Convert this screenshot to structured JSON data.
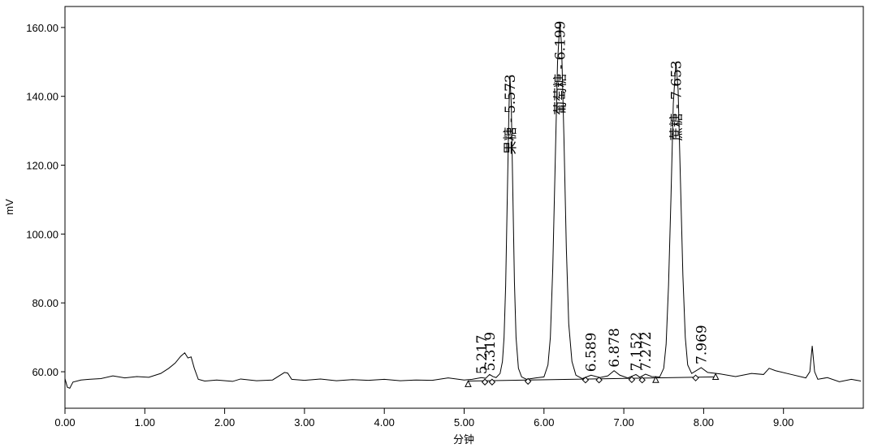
{
  "chart_data": {
    "type": "line",
    "x_label": "分钟",
    "y_label": "mV",
    "color": "#000000",
    "xlim": [
      0,
      10
    ],
    "ylim": [
      49.4,
      166.1
    ],
    "xticks": [
      {
        "value": 0,
        "label": "0.00"
      },
      {
        "value": 1,
        "label": "1.00"
      },
      {
        "value": 2,
        "label": "2.00"
      },
      {
        "value": 3,
        "label": "3.00"
      },
      {
        "value": 4,
        "label": "4.00"
      },
      {
        "value": 5,
        "label": "5.00"
      },
      {
        "value": 6,
        "label": "6.00"
      },
      {
        "value": 7,
        "label": "7.00"
      },
      {
        "value": 8,
        "label": "8.00"
      },
      {
        "value": 9,
        "label": "9.00"
      }
    ],
    "yticks": [
      {
        "value": 60,
        "label": "60.00"
      },
      {
        "value": 80,
        "label": "80.00"
      },
      {
        "value": 100,
        "label": "100.00"
      },
      {
        "value": 120,
        "label": "120.00"
      },
      {
        "value": 140,
        "label": "140.00"
      },
      {
        "value": 160,
        "label": "160.00"
      }
    ],
    "x": [
      0,
      0.03,
      0.06,
      0.1,
      0.2,
      0.3,
      0.45,
      0.6,
      0.75,
      0.9,
      1.05,
      1.2,
      1.3,
      1.38,
      1.45,
      1.5,
      1.54,
      1.58,
      1.62,
      1.67,
      1.75,
      1.9,
      2.1,
      2.2,
      2.4,
      2.6,
      2.75,
      2.79,
      2.84,
      3.0,
      3.2,
      3.4,
      3.6,
      3.8,
      4.0,
      4.2,
      4.4,
      4.6,
      4.8,
      5.0,
      5.1,
      5.217,
      5.27,
      5.319,
      5.36,
      5.4,
      5.45,
      5.48,
      5.5,
      5.52,
      5.54,
      5.56,
      5.573,
      5.59,
      5.61,
      5.63,
      5.65,
      5.68,
      5.72,
      5.78,
      5.9,
      6.0,
      6.05,
      6.08,
      6.11,
      6.14,
      6.17,
      6.199,
      6.22,
      6.25,
      6.28,
      6.31,
      6.35,
      6.4,
      6.48,
      6.589,
      6.7,
      6.8,
      6.878,
      6.95,
      7.05,
      7.152,
      7.2,
      7.272,
      7.35,
      7.45,
      7.5,
      7.53,
      7.56,
      7.59,
      7.62,
      7.653,
      7.68,
      7.71,
      7.74,
      7.77,
      7.8,
      7.85,
      7.969,
      8.05,
      8.2,
      8.4,
      8.6,
      8.75,
      8.82,
      8.9,
      9.1,
      9.28,
      9.33,
      9.36,
      9.39,
      9.43,
      9.55,
      9.7,
      9.85,
      9.97
    ],
    "values": [
      58,
      55.5,
      55.2,
      57,
      57.6,
      57.8,
      58,
      58.8,
      58.2,
      58.6,
      58.4,
      59.5,
      61,
      62.5,
      64.5,
      65.5,
      64,
      64.3,
      61,
      57.8,
      57.3,
      57.6,
      57.2,
      57.9,
      57.4,
      57.6,
      59.8,
      59.6,
      57.8,
      57.5,
      57.9,
      57.4,
      57.7,
      57.5,
      57.8,
      57.4,
      57.6,
      57.5,
      58.2,
      57.6,
      57.8,
      58.3,
      58.1,
      59.2,
      58.6,
      58.3,
      59.5,
      63,
      70,
      85,
      110,
      135,
      146,
      138,
      112,
      86,
      70,
      61,
      58.5,
      57.8,
      58.2,
      58.5,
      62,
      70,
      90,
      120,
      150,
      161.5,
      155,
      128,
      96,
      74,
      63,
      59,
      58,
      59,
      58.3,
      58.8,
      60.3,
      59,
      58.2,
      59.2,
      58.4,
      59.3,
      58.6,
      58.5,
      61,
      68,
      85,
      110,
      138,
      150,
      142,
      115,
      88,
      70,
      62,
      59.5,
      61.2,
      59.8,
      59.4,
      58.6,
      59.5,
      59.2,
      61,
      60.3,
      59.2,
      58.2,
      60,
      67.5,
      60,
      57.8,
      58.3,
      57.1,
      57.8,
      57.3
    ],
    "baseline": {
      "x": [
        5.05,
        8.15
      ],
      "y": [
        57.3,
        58.5
      ]
    },
    "markers": {
      "x": [
        5.05,
        5.26,
        5.35,
        5.8,
        6.52,
        6.69,
        7.1,
        7.23,
        7.4,
        7.9,
        8.15
      ],
      "y": [
        56.5,
        57,
        57,
        57.2,
        57.6,
        57.6,
        57.7,
        57.6,
        57.7,
        58.2,
        58.6
      ],
      "shape": [
        "triangle",
        "diamond",
        "diamond",
        "diamond",
        "diamond",
        "diamond",
        "diamond",
        "diamond",
        "triangle",
        "diamond",
        "triangle"
      ]
    },
    "annotations": [
      {
        "x": 5.217,
        "y": 58.3,
        "label": "5.217"
      },
      {
        "x": 5.319,
        "y": 59.2,
        "label": "5.319"
      },
      {
        "x": 5.573,
        "y": 146,
        "label": "果糖 - 5.573"
      },
      {
        "x": 6.199,
        "y": 161.5,
        "label": "葡萄糖 - 6.199"
      },
      {
        "x": 6.589,
        "y": 59,
        "label": "6.589"
      },
      {
        "x": 6.878,
        "y": 60.3,
        "label": "6.878"
      },
      {
        "x": 7.152,
        "y": 59.2,
        "label": "7.152"
      },
      {
        "x": 7.272,
        "y": 59.3,
        "label": "7.272"
      },
      {
        "x": 7.653,
        "y": 150,
        "label": "蔗糖 - 7.653"
      },
      {
        "x": 7.969,
        "y": 61.2,
        "label": "7.969"
      }
    ]
  }
}
